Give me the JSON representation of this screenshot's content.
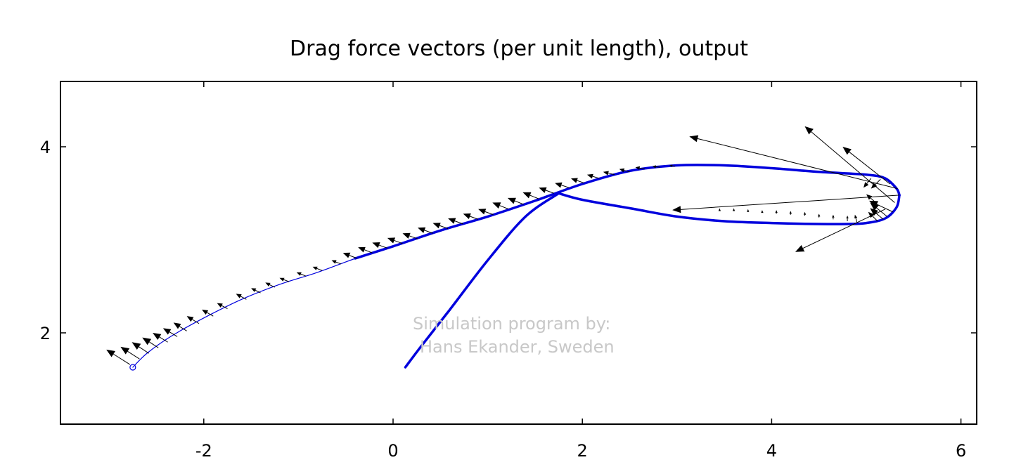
{
  "chart_data": {
    "type": "vector-field",
    "title": "Drag force vectors (per unit length), output",
    "xlabel": "",
    "ylabel": "",
    "xlim": [
      -3.5,
      6.2
    ],
    "ylim": [
      1.05,
      4.7
    ],
    "xticks": [
      -2,
      0,
      2,
      4,
      6
    ],
    "yticks": [
      2,
      4
    ],
    "grid": false,
    "colors": {
      "body": "#0000dd",
      "vectors": "#000000",
      "watermark": "#c8c8c8"
    },
    "annotation": [
      "Simulation program by:",
      "Hans Ekander, Sweden"
    ],
    "curves": [
      {
        "id": "line",
        "width": 1.2,
        "points": [
          [
            -2.75,
            1.63
          ],
          [
            -2.6,
            1.78
          ],
          [
            -2.35,
            1.96
          ],
          [
            -2.0,
            2.16
          ],
          [
            -1.6,
            2.36
          ],
          [
            -1.2,
            2.52
          ],
          [
            -0.8,
            2.65
          ],
          [
            -0.4,
            2.8
          ]
        ]
      },
      {
        "id": "upper-surface",
        "width": 3.5,
        "points": [
          [
            -0.4,
            2.8
          ],
          [
            0.0,
            2.93
          ],
          [
            0.5,
            3.1
          ],
          [
            1.0,
            3.25
          ],
          [
            1.5,
            3.42
          ],
          [
            2.0,
            3.6
          ],
          [
            2.5,
            3.74
          ],
          [
            3.0,
            3.8
          ],
          [
            3.5,
            3.8
          ],
          [
            4.0,
            3.77
          ],
          [
            4.5,
            3.73
          ],
          [
            5.0,
            3.7
          ],
          [
            5.2,
            3.66
          ],
          [
            5.32,
            3.55
          ],
          [
            5.35,
            3.48
          ]
        ]
      },
      {
        "id": "lower-surface",
        "width": 3.5,
        "points": [
          [
            5.35,
            3.48
          ],
          [
            5.32,
            3.35
          ],
          [
            5.2,
            3.23
          ],
          [
            5.0,
            3.18
          ],
          [
            4.8,
            3.17
          ],
          [
            4.5,
            3.17
          ],
          [
            4.0,
            3.18
          ],
          [
            3.5,
            3.2
          ],
          [
            3.0,
            3.25
          ],
          [
            2.5,
            3.34
          ],
          [
            2.0,
            3.43
          ],
          [
            1.75,
            3.5
          ]
        ]
      },
      {
        "id": "support-line",
        "width": 3.5,
        "points": [
          [
            1.75,
            3.5
          ],
          [
            1.4,
            3.25
          ],
          [
            1.0,
            2.78
          ],
          [
            0.6,
            2.25
          ],
          [
            0.3,
            1.86
          ],
          [
            0.13,
            1.63
          ]
        ]
      }
    ],
    "endpoint_marker": [
      -2.75,
      1.63
    ],
    "vectors": [
      {
        "origin": [
          -2.78,
          1.66
        ],
        "delta": [
          -0.25,
          0.16
        ]
      },
      {
        "origin": [
          -2.68,
          1.72
        ],
        "delta": [
          -0.2,
          0.13
        ]
      },
      {
        "origin": [
          -2.58,
          1.78
        ],
        "delta": [
          -0.18,
          0.12
        ]
      },
      {
        "origin": [
          -2.48,
          1.84
        ],
        "delta": [
          -0.17,
          0.11
        ]
      },
      {
        "origin": [
          -2.38,
          1.9
        ],
        "delta": [
          -0.16,
          0.1
        ]
      },
      {
        "origin": [
          -2.28,
          1.96
        ],
        "delta": [
          -0.15,
          0.09
        ]
      },
      {
        "origin": [
          -2.18,
          2.02
        ],
        "delta": [
          -0.14,
          0.09
        ]
      },
      {
        "origin": [
          -2.05,
          2.1
        ],
        "delta": [
          -0.13,
          0.08
        ]
      },
      {
        "origin": [
          -1.9,
          2.18
        ],
        "delta": [
          -0.12,
          0.07
        ]
      },
      {
        "origin": [
          -1.75,
          2.26
        ],
        "delta": [
          -0.11,
          0.06
        ]
      },
      {
        "origin": [
          -1.55,
          2.36
        ],
        "delta": [
          -0.11,
          0.06
        ]
      },
      {
        "origin": [
          -1.4,
          2.43
        ],
        "delta": [
          -0.1,
          0.05
        ]
      },
      {
        "origin": [
          -1.25,
          2.49
        ],
        "delta": [
          -0.1,
          0.05
        ]
      },
      {
        "origin": [
          -1.1,
          2.55
        ],
        "delta": [
          -0.1,
          0.04
        ]
      },
      {
        "origin": [
          -0.92,
          2.61
        ],
        "delta": [
          -0.1,
          0.04
        ]
      },
      {
        "origin": [
          -0.75,
          2.67
        ],
        "delta": [
          -0.1,
          0.04
        ]
      },
      {
        "origin": [
          -0.55,
          2.74
        ],
        "delta": [
          -0.1,
          0.04
        ]
      },
      {
        "origin": [
          -0.38,
          2.8
        ],
        "delta": [
          -0.15,
          0.06
        ]
      },
      {
        "origin": [
          -0.22,
          2.86
        ],
        "delta": [
          -0.15,
          0.06
        ]
      },
      {
        "origin": [
          -0.06,
          2.91
        ],
        "delta": [
          -0.16,
          0.06
        ]
      },
      {
        "origin": [
          0.1,
          2.96
        ],
        "delta": [
          -0.16,
          0.06
        ]
      },
      {
        "origin": [
          0.26,
          3.01
        ],
        "delta": [
          -0.16,
          0.06
        ]
      },
      {
        "origin": [
          0.42,
          3.07
        ],
        "delta": [
          -0.16,
          0.06
        ]
      },
      {
        "origin": [
          0.58,
          3.12
        ],
        "delta": [
          -0.16,
          0.06
        ]
      },
      {
        "origin": [
          0.74,
          3.17
        ],
        "delta": [
          -0.16,
          0.06
        ]
      },
      {
        "origin": [
          0.9,
          3.22
        ],
        "delta": [
          -0.16,
          0.06
        ]
      },
      {
        "origin": [
          1.06,
          3.27
        ],
        "delta": [
          -0.16,
          0.06
        ]
      },
      {
        "origin": [
          1.22,
          3.33
        ],
        "delta": [
          -0.17,
          0.07
        ]
      },
      {
        "origin": [
          1.38,
          3.38
        ],
        "delta": [
          -0.17,
          0.07
        ]
      },
      {
        "origin": [
          1.54,
          3.44
        ],
        "delta": [
          -0.17,
          0.07
        ]
      },
      {
        "origin": [
          1.7,
          3.5
        ],
        "delta": [
          -0.16,
          0.06
        ]
      },
      {
        "origin": [
          1.86,
          3.56
        ],
        "delta": [
          -0.15,
          0.05
        ]
      },
      {
        "origin": [
          2.02,
          3.61
        ],
        "delta": [
          -0.14,
          0.05
        ]
      },
      {
        "origin": [
          2.18,
          3.66
        ],
        "delta": [
          -0.13,
          0.04
        ]
      },
      {
        "origin": [
          2.34,
          3.7
        ],
        "delta": [
          -0.12,
          0.03
        ]
      },
      {
        "origin": [
          2.5,
          3.73
        ],
        "delta": [
          -0.11,
          0.03
        ]
      },
      {
        "origin": [
          2.66,
          3.76
        ],
        "delta": [
          -0.1,
          0.02
        ]
      },
      {
        "origin": [
          2.82,
          3.78
        ],
        "delta": [
          -0.08,
          0.01
        ]
      },
      {
        "origin": [
          2.98,
          3.79
        ],
        "delta": [
          -0.06,
          0.01
        ]
      },
      {
        "origin": [
          3.45,
          3.32
        ],
        "delta": [
          0.0,
          0.02
        ]
      },
      {
        "origin": [
          3.6,
          3.31
        ],
        "delta": [
          0.0,
          0.03
        ]
      },
      {
        "origin": [
          3.75,
          3.3
        ],
        "delta": [
          0.0,
          0.03
        ]
      },
      {
        "origin": [
          3.9,
          3.29
        ],
        "delta": [
          0.0,
          0.03
        ]
      },
      {
        "origin": [
          4.05,
          3.28
        ],
        "delta": [
          0.0,
          0.04
        ]
      },
      {
        "origin": [
          4.2,
          3.27
        ],
        "delta": [
          0.0,
          0.04
        ]
      },
      {
        "origin": [
          4.35,
          3.26
        ],
        "delta": [
          0.0,
          0.04
        ]
      },
      {
        "origin": [
          4.5,
          3.24
        ],
        "delta": [
          0.0,
          0.04
        ]
      },
      {
        "origin": [
          4.65,
          3.22
        ],
        "delta": [
          0.0,
          0.05
        ]
      },
      {
        "origin": [
          4.8,
          3.2
        ],
        "delta": [
          0.0,
          0.06
        ]
      },
      {
        "origin": [
          4.9,
          3.19
        ],
        "delta": [
          -0.02,
          0.08
        ]
      },
      {
        "origin": [
          5.35,
          3.48
        ],
        "delta": [
          -2.4,
          -0.16
        ]
      },
      {
        "origin": [
          5.33,
          3.55
        ],
        "delta": [
          -2.2,
          0.56
        ]
      },
      {
        "origin": [
          5.3,
          3.4
        ],
        "delta": [
          -0.95,
          0.82
        ]
      },
      {
        "origin": [
          5.25,
          3.6
        ],
        "delta": [
          -0.5,
          0.4
        ]
      },
      {
        "origin": [
          5.2,
          3.33
        ],
        "delta": [
          -0.95,
          -0.46
        ]
      },
      {
        "origin": [
          5.28,
          3.3
        ],
        "delta": [
          -0.25,
          0.12
        ]
      },
      {
        "origin": [
          5.22,
          3.25
        ],
        "delta": [
          -0.18,
          0.15
        ]
      },
      {
        "origin": [
          5.18,
          3.22
        ],
        "delta": [
          -0.14,
          0.12
        ]
      },
      {
        "origin": [
          5.12,
          3.2
        ],
        "delta": [
          -0.1,
          0.1
        ]
      },
      {
        "origin": [
          5.05,
          3.66
        ],
        "delta": [
          -0.08,
          -0.1
        ]
      },
      {
        "origin": [
          5.15,
          3.65
        ],
        "delta": [
          -0.1,
          -0.1
        ]
      },
      {
        "origin": [
          5.1,
          3.4
        ],
        "delta": [
          -0.1,
          0.09
        ]
      }
    ]
  }
}
